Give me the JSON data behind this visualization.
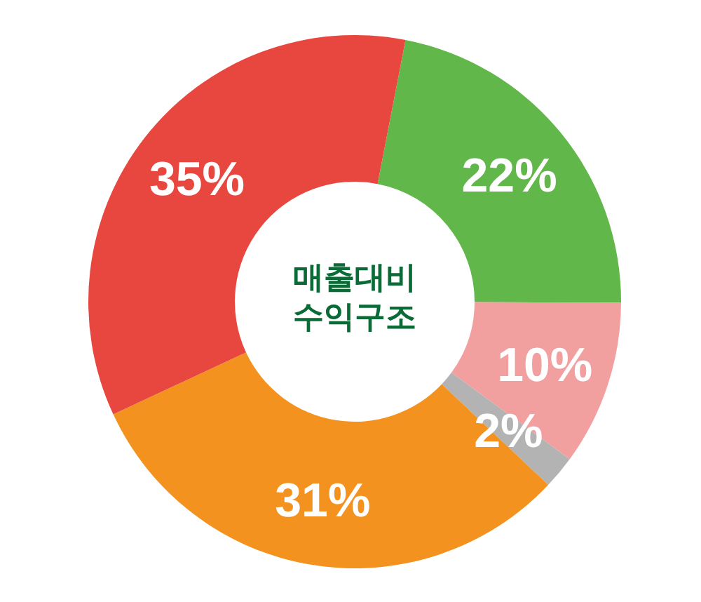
{
  "chart_data": {
    "type": "donut",
    "title": "매출대비 수익구조",
    "categories": [
      null,
      null,
      null,
      null,
      null
    ],
    "values": [
      22,
      10,
      2,
      31,
      35
    ],
    "colors": [
      "#62b74b",
      "#f1a09f",
      "#b3b3b3",
      "#f3921e",
      "#e8473f"
    ],
    "value_labels": [
      "22%",
      "10%",
      "2%",
      "31%",
      "35%"
    ]
  }
}
